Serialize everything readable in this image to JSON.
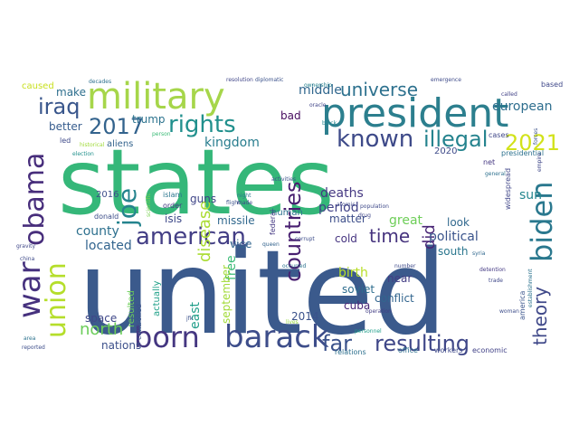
{
  "words": [
    {
      "text": "united",
      "color": "#3b5a8c"
    },
    {
      "text": "states",
      "color": "#35b779"
    },
    {
      "text": "president",
      "color": "#2c7f8e"
    },
    {
      "text": "military",
      "color": "#a6d64a"
    },
    {
      "text": "biden",
      "color": "#2a788e"
    },
    {
      "text": "barack",
      "color": "#3d4d8a"
    },
    {
      "text": "born",
      "color": "#453781"
    },
    {
      "text": "obama",
      "color": "#472d7b"
    },
    {
      "text": "war",
      "color": "#46317e"
    },
    {
      "text": "union",
      "color": "#b5de2b"
    },
    {
      "text": "american",
      "color": "#433e85"
    },
    {
      "text": "joe",
      "color": "#25848e"
    },
    {
      "text": "rights",
      "color": "#21908d"
    },
    {
      "text": "2017",
      "color": "#33638d"
    },
    {
      "text": "known",
      "color": "#3e4a89"
    },
    {
      "text": "illegal",
      "color": "#25838e"
    },
    {
      "text": "2021",
      "color": "#d2e21b"
    },
    {
      "text": "iraq",
      "color": "#39568c"
    },
    {
      "text": "universe",
      "color": "#2d718e"
    },
    {
      "text": "countries",
      "color": "#481f70"
    },
    {
      "text": "far",
      "color": "#3b528b"
    },
    {
      "text": "resulting",
      "color": "#3f4788"
    },
    {
      "text": "theory",
      "color": "#3f4889"
    },
    {
      "text": "time",
      "color": "#46337e"
    },
    {
      "text": "disease",
      "color": "#aadc32"
    },
    {
      "text": "north",
      "color": "#6ccd5a"
    },
    {
      "text": "did",
      "color": "#482475"
    },
    {
      "text": "county",
      "color": "#2d708e"
    },
    {
      "text": "located",
      "color": "#32648e"
    },
    {
      "text": "sun",
      "color": "#24868e"
    },
    {
      "text": "political",
      "color": "#3a548c"
    },
    {
      "text": "european",
      "color": "#2e6e8e"
    },
    {
      "text": "middle",
      "color": "#31678e"
    },
    {
      "text": "deaths",
      "color": "#453882"
    },
    {
      "text": "period",
      "color": "#414287"
    },
    {
      "text": "kingdom",
      "color": "#287d8e"
    },
    {
      "text": "guns",
      "color": "#404688"
    },
    {
      "text": "isis",
      "color": "#3e4989"
    },
    {
      "text": "missile",
      "color": "#31688e"
    },
    {
      "text": "trump",
      "color": "#2c738e"
    },
    {
      "text": "better",
      "color": "#365c8d"
    },
    {
      "text": "matter",
      "color": "#3d4e8a"
    },
    {
      "text": "great",
      "color": "#6ece58"
    },
    {
      "text": "look",
      "color": "#31688e"
    },
    {
      "text": "cold",
      "color": "#463480"
    },
    {
      "text": "birth",
      "color": "#b8de29"
    },
    {
      "text": "soviet",
      "color": "#2e6d8e"
    },
    {
      "text": "cuba",
      "color": "#482576"
    },
    {
      "text": "conflict",
      "color": "#32658e"
    },
    {
      "text": "near",
      "color": "#433d84"
    },
    {
      "text": "south",
      "color": "#2a768e"
    },
    {
      "text": "free",
      "color": "#3aba76"
    },
    {
      "text": "east",
      "color": "#1f9e89"
    },
    {
      "text": "september",
      "color": "#a2da37"
    },
    {
      "text": "vice",
      "color": "#31668e"
    },
    {
      "text": "space",
      "color": "#3f4788"
    },
    {
      "text": "nations",
      "color": "#3c4f8a"
    },
    {
      "text": "2014",
      "color": "#3b528b"
    },
    {
      "text": "make",
      "color": "#2e6f8e"
    },
    {
      "text": "caused",
      "color": "#c8e020"
    },
    {
      "text": "bad",
      "color": "#460b5e"
    },
    {
      "text": "human",
      "color": "#2c728e"
    },
    {
      "text": "2016",
      "color": "#3d4d8a"
    },
    {
      "text": "2020",
      "color": "#3e4a89"
    },
    {
      "text": "aliens",
      "color": "#33638d"
    },
    {
      "text": "relations",
      "color": "#2d708e"
    },
    {
      "text": "office",
      "color": "#2d708e"
    },
    {
      "text": "workers",
      "color": "#3e4989"
    },
    {
      "text": "economic",
      "color": "#414287"
    },
    {
      "text": "based",
      "color": "#3f4889"
    },
    {
      "text": "actually",
      "color": "#1fa088"
    },
    {
      "text": "resulted",
      "color": "#6ccd5a"
    },
    {
      "text": "islam",
      "color": "#2a768e"
    },
    {
      "text": "order",
      "color": "#443a83"
    },
    {
      "text": "controlled",
      "color": "#3b528b"
    },
    {
      "text": "donald",
      "color": "#3d4e8a"
    },
    {
      "text": "federal",
      "color": "#443983"
    },
    {
      "text": "america",
      "color": "#3a548c"
    },
    {
      "text": "widespread",
      "color": "#404688"
    },
    {
      "text": "presidential",
      "color": "#2c718e"
    },
    {
      "text": "net",
      "color": "#453781"
    },
    {
      "text": "cases",
      "color": "#3f4788"
    },
    {
      "text": "led",
      "color": "#3e4989"
    },
    {
      "text": "decades",
      "color": "#2d708e"
    },
    {
      "text": "resolution",
      "color": "#404588"
    },
    {
      "text": "diplomatic",
      "color": "#3b528b"
    },
    {
      "text": "ownership",
      "color": "#26828e"
    },
    {
      "text": "emergence",
      "color": "#3e4a89"
    },
    {
      "text": "called",
      "color": "#414287"
    },
    {
      "text": "historical",
      "color": "#a0da39"
    },
    {
      "text": "election",
      "color": "#21918c"
    },
    {
      "text": "person",
      "color": "#3aba76"
    },
    {
      "text": "black",
      "color": "#25848e"
    },
    {
      "text": "forces",
      "color": "#3b528b"
    },
    {
      "text": "gravity",
      "color": "#3f4788"
    },
    {
      "text": "china",
      "color": "#3e4a89"
    },
    {
      "text": "area",
      "color": "#2c728e"
    },
    {
      "text": "reported",
      "color": "#3d4d8a"
    },
    {
      "text": "flight",
      "color": "#3b528b"
    },
    {
      "text": "lives",
      "color": "#95d840"
    },
    {
      "text": "scientific",
      "color": "#7ad151"
    },
    {
      "text": "establishment",
      "color": "#2c738e"
    },
    {
      "text": "operation",
      "color": "#433e85"
    },
    {
      "text": "woman",
      "color": "#3d4d8a"
    },
    {
      "text": "number",
      "color": "#3e4989"
    },
    {
      "text": "syria",
      "color": "#31688e"
    },
    {
      "text": "detention",
      "color": "#443983"
    },
    {
      "text": "trade",
      "color": "#3f4889"
    },
    {
      "text": "leader",
      "color": "#3b528b"
    },
    {
      "text": "queen",
      "color": "#33638d"
    },
    {
      "text": "population",
      "color": "#3e4989"
    },
    {
      "text": "general",
      "color": "#2d708e"
    },
    {
      "text": "empire",
      "color": "#3f4788"
    },
    {
      "text": "activities",
      "color": "#3b528b"
    },
    {
      "text": "oracle",
      "color": "#404588"
    },
    {
      "text": "personnel",
      "color": "#1f9e89"
    },
    {
      "text": "atomic",
      "color": "#3e4989"
    },
    {
      "text": "drug",
      "color": "#3f4788"
    },
    {
      "text": "jfk",
      "color": "#3b528b"
    },
    {
      "text": "occurred",
      "color": "#2c728e"
    },
    {
      "text": "night",
      "color": "#2a768e"
    },
    {
      "text": "made",
      "color": "#3e4a89"
    },
    {
      "text": "corrupt",
      "color": "#3d4d8a"
    }
  ]
}
